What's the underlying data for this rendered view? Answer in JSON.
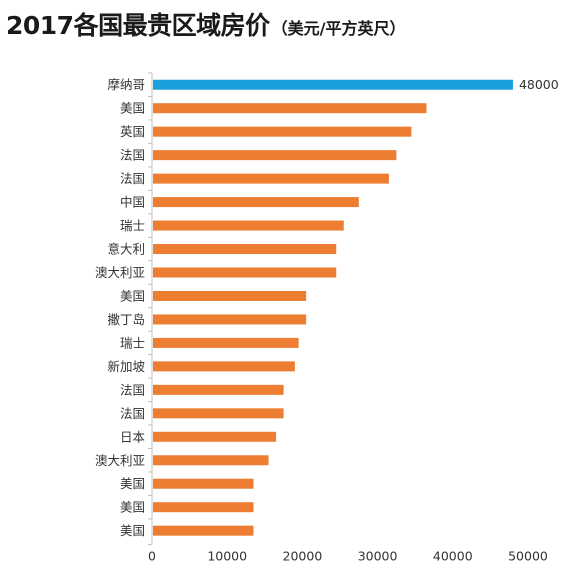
{
  "title": "2017各国最贵区域房价",
  "subtitle": "（美元/平方英尺）",
  "colors": {
    "highlight": "#1aa0dc",
    "bar": "#ed7d31",
    "axis": "#bfbfbf",
    "text": "#333333"
  },
  "chart_data": {
    "type": "bar",
    "orientation": "horizontal",
    "categories": [
      "摩纳哥",
      "美国",
      "英国",
      "法国",
      "法国",
      "中国",
      "瑞士",
      "意大利",
      "澳大利亚",
      "美国",
      "撒丁岛",
      "瑞士",
      "新加坡",
      "法国",
      "法国",
      "日本",
      "澳大利亚",
      "美国",
      "美国",
      "美国"
    ],
    "values": [
      48000,
      36500,
      34500,
      32500,
      31500,
      27500,
      25500,
      24500,
      24500,
      20500,
      20500,
      19500,
      19000,
      17500,
      17500,
      16500,
      15500,
      13500,
      13500,
      13500
    ],
    "data_labels": [
      "48000",
      "",
      "",
      "",
      "",
      "",
      "",
      "",
      "",
      "",
      "",
      "",
      "",
      "",
      "",
      "",
      "",
      "",
      "",
      ""
    ],
    "highlight_index": 0,
    "xlim": [
      0,
      50000
    ],
    "xticks": [
      "0",
      "10000",
      "20000",
      "30000",
      "40000",
      "50000"
    ],
    "grid": false
  }
}
